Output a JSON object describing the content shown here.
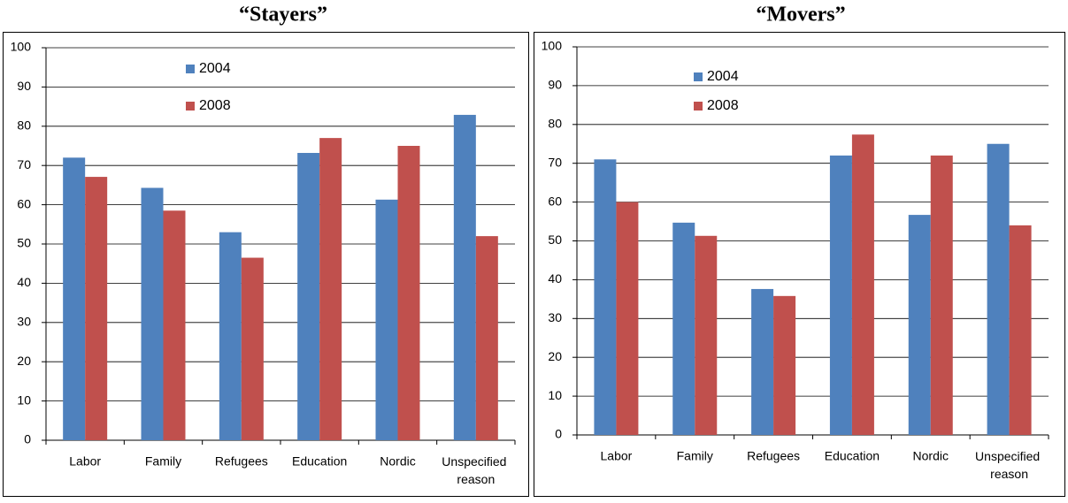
{
  "chart_data": [
    {
      "type": "bar",
      "title": "“Stayers”",
      "categories": [
        "Labor",
        "Family",
        "Refugees",
        "Education",
        "Nordic",
        "Unspecified reason"
      ],
      "series": [
        {
          "name": "2004",
          "color": "#4f81bd",
          "values": [
            72,
            64.3,
            53,
            73.2,
            61.3,
            82.9
          ]
        },
        {
          "name": "2008",
          "color": "#c0504d",
          "values": [
            67.1,
            58.5,
            46.5,
            77,
            75,
            52
          ]
        }
      ],
      "ylim": [
        0,
        100
      ],
      "yticks": [
        0,
        10,
        20,
        30,
        40,
        50,
        60,
        70,
        80,
        90,
        100
      ],
      "grid": true
    },
    {
      "type": "bar",
      "title": "“Movers”",
      "categories": [
        "Labor",
        "Family",
        "Refugees",
        "Education",
        "Nordic",
        "Unspecified reason"
      ],
      "series": [
        {
          "name": "2004",
          "color": "#4f81bd",
          "values": [
            71,
            54.7,
            37.6,
            72,
            56.7,
            75
          ]
        },
        {
          "name": "2008",
          "color": "#c0504d",
          "values": [
            60,
            51.3,
            35.8,
            77.4,
            72,
            54
          ]
        }
      ],
      "ylim": [
        0,
        100
      ],
      "yticks": [
        0,
        10,
        20,
        30,
        40,
        50,
        60,
        70,
        80,
        90,
        100
      ],
      "grid": true
    }
  ]
}
